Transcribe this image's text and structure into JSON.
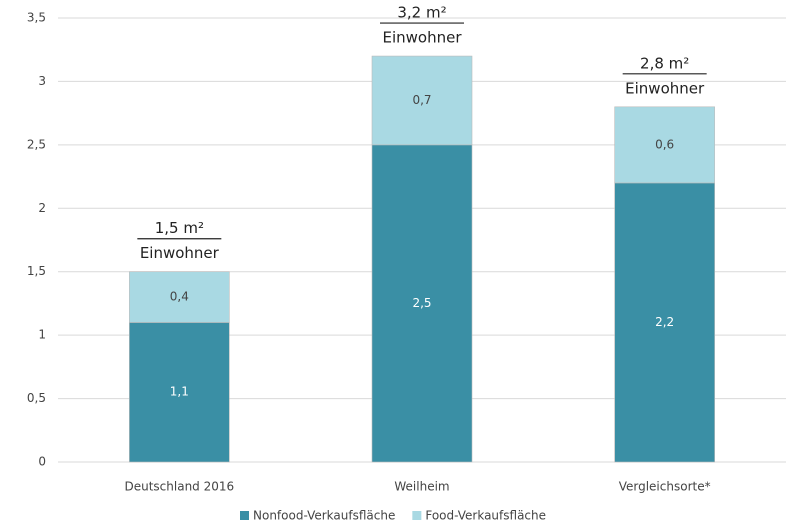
{
  "chart_data": {
    "type": "stacked_bar",
    "categories": [
      "Deutschland  2016",
      "Weilheim",
      "Vergleichsorte*"
    ],
    "series": [
      {
        "name": "Nonfood-Verkaufsfläche",
        "color": "#3a8fa5",
        "values": [
          1.1,
          2.5,
          2.2
        ],
        "value_labels": [
          "1,1",
          "2,5",
          "2,2"
        ]
      },
      {
        "name": "Food-Verkaufsfläche",
        "color": "#a9d9e3",
        "values": [
          0.4,
          0.7,
          0.6
        ],
        "value_labels": [
          "0,4",
          "0,7",
          "0,6"
        ]
      }
    ],
    "annotations": [
      {
        "numerator": "1,5 m²",
        "denominator": "Einwohner"
      },
      {
        "numerator": "3,2 m²",
        "denominator": "Einwohner"
      },
      {
        "numerator": "2,8 m²",
        "denominator": "Einwohner"
      }
    ],
    "ylim": [
      0,
      3.5
    ],
    "yticks": [
      0,
      {
        "value": 0.5,
        "label": "0,5"
      },
      1,
      {
        "value": 1.5,
        "label": "1,5"
      },
      2,
      {
        "value": 2.5,
        "label": "2,5"
      },
      3,
      {
        "value": 3.5,
        "label": "3,5"
      }
    ],
    "grid": true,
    "legend": "bottom"
  }
}
